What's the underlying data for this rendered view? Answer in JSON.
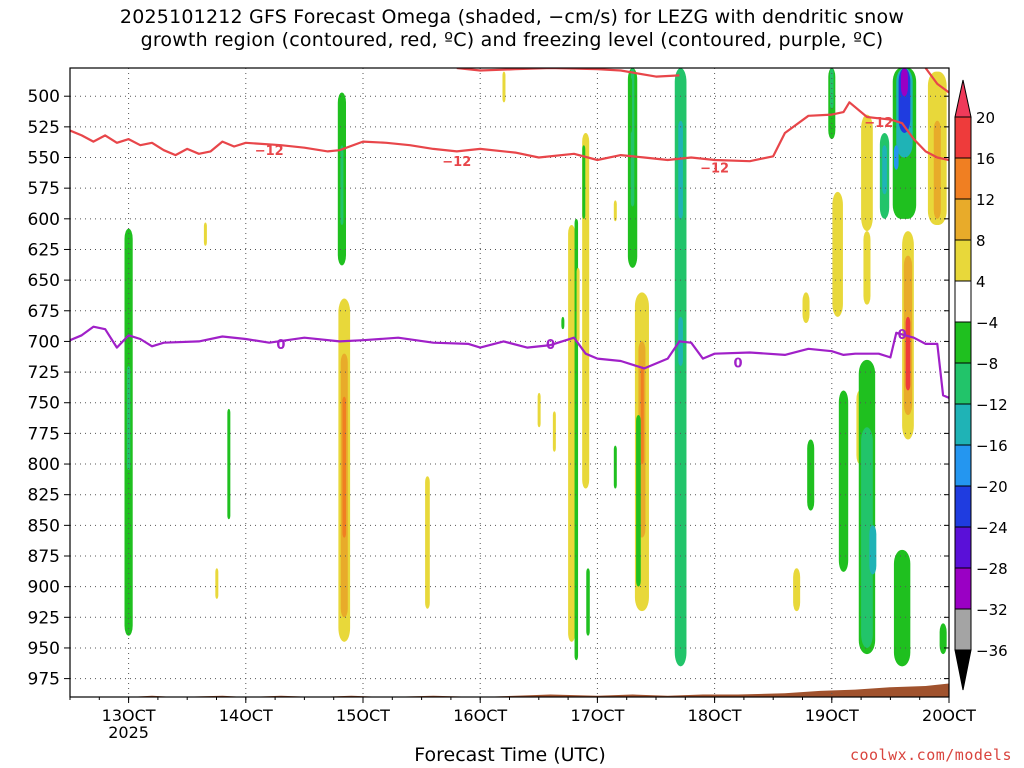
{
  "title_line1": "2025101212 GFS Forecast Omega (shaded, −cm/s) for LEZG with dendritic snow",
  "title_line2": "growth region (contoured, red, ºC) and freezing level (contoured, purple, ºC)",
  "credit": "coolwx.com/models",
  "chart_data": {
    "type": "heatmap",
    "title": "2025101212 GFS Forecast Omega (shaded, −cm/s) for LEZG with dendritic snow growth region (contoured, red, ºC) and freezing level (contoured, purple, ºC)",
    "xlabel": "Forecast Time (UTC)",
    "ylabel": "",
    "x_ticks": [
      {
        "label": "13OCT",
        "sub": "2025",
        "day": 13
      },
      {
        "label": "14OCT",
        "sub": "",
        "day": 14
      },
      {
        "label": "15OCT",
        "sub": "",
        "day": 15
      },
      {
        "label": "16OCT",
        "sub": "",
        "day": 16
      },
      {
        "label": "17OCT",
        "sub": "",
        "day": 17
      },
      {
        "label": "18OCT",
        "sub": "",
        "day": 18
      },
      {
        "label": "19OCT",
        "sub": "",
        "day": 19
      },
      {
        "label": "20OCT",
        "sub": "",
        "day": 20
      }
    ],
    "xlim": [
      12.5,
      20.0
    ],
    "y_ticks": [
      500,
      525,
      550,
      575,
      600,
      625,
      650,
      675,
      700,
      725,
      750,
      775,
      800,
      825,
      850,
      875,
      900,
      925,
      950,
      975
    ],
    "ylim": [
      990,
      477
    ],
    "grid": true,
    "colorbar": {
      "labels": [
        "20",
        "16",
        "12",
        "8",
        "4",
        "−4",
        "−8",
        "−12",
        "−16",
        "−20",
        "−24",
        "−28",
        "−32",
        "−36"
      ],
      "colors": [
        "#ef3a5a",
        "#ee3b3b",
        "#f07f22",
        "#e8ab2a",
        "#e8d83a",
        "#ffffff",
        "#1fc01f",
        "#22c46a",
        "#1fb3b6",
        "#2496f0",
        "#1f3ce0",
        "#5a10d8",
        "#9a00c4",
        "#a4a4a4",
        "#000000"
      ]
    },
    "contours": [
      {
        "label": "−12",
        "color": "#e8464a",
        "points": [
          [
            12.5,
            528
          ],
          [
            12.6,
            532
          ],
          [
            12.7,
            537
          ],
          [
            12.8,
            532
          ],
          [
            12.9,
            538
          ],
          [
            13.0,
            535
          ],
          [
            13.1,
            540
          ],
          [
            13.2,
            538
          ],
          [
            13.3,
            544
          ],
          [
            13.4,
            548
          ],
          [
            13.5,
            543
          ],
          [
            13.6,
            547
          ],
          [
            13.7,
            545
          ],
          [
            13.8,
            537
          ],
          [
            13.9,
            541
          ],
          [
            14.0,
            538
          ],
          [
            14.3,
            540
          ],
          [
            14.5,
            542
          ],
          [
            14.7,
            545
          ],
          [
            14.8,
            544
          ],
          [
            15.0,
            537
          ],
          [
            15.2,
            538
          ],
          [
            15.4,
            540
          ],
          [
            15.6,
            543
          ],
          [
            15.8,
            545
          ],
          [
            16.0,
            543
          ],
          [
            16.3,
            546
          ],
          [
            16.5,
            550
          ],
          [
            16.8,
            547
          ],
          [
            17.0,
            552
          ],
          [
            17.2,
            548
          ],
          [
            17.4,
            550
          ],
          [
            17.6,
            552
          ],
          [
            17.8,
            550
          ],
          [
            18.0,
            552
          ],
          [
            18.3,
            553
          ],
          [
            18.5,
            549
          ],
          [
            18.6,
            530
          ],
          [
            18.8,
            516
          ],
          [
            19.0,
            515
          ],
          [
            19.1,
            513
          ],
          [
            19.15,
            505
          ],
          [
            19.3,
            517
          ],
          [
            19.4,
            518
          ],
          [
            19.5,
            519
          ],
          [
            19.6,
            522
          ],
          [
            19.7,
            535
          ],
          [
            19.8,
            545
          ],
          [
            19.9,
            550
          ],
          [
            20.0,
            552
          ]
        ]
      },
      {
        "label": "−12",
        "color": "#e8464a",
        "points": [
          [
            15.8,
            477
          ],
          [
            16.0,
            479
          ],
          [
            16.3,
            478
          ],
          [
            16.6,
            477
          ],
          [
            17.0,
            478
          ],
          [
            17.2,
            479
          ],
          [
            17.5,
            484
          ],
          [
            17.7,
            483
          ]
        ]
      },
      {
        "label": "−12",
        "color": "#e8464a",
        "points": [
          [
            19.8,
            477
          ],
          [
            19.9,
            490
          ],
          [
            20.0,
            497
          ]
        ]
      },
      {
        "label": "0",
        "color": "#a020c8",
        "points": [
          [
            12.5,
            699
          ],
          [
            12.6,
            695
          ],
          [
            12.7,
            688
          ],
          [
            12.8,
            690
          ],
          [
            12.9,
            705
          ],
          [
            13.0,
            695
          ],
          [
            13.1,
            698
          ],
          [
            13.2,
            704
          ],
          [
            13.3,
            701
          ],
          [
            13.6,
            700
          ],
          [
            13.8,
            696
          ],
          [
            14.0,
            698
          ],
          [
            14.2,
            701
          ],
          [
            14.5,
            697
          ],
          [
            14.8,
            700
          ],
          [
            15.0,
            699
          ],
          [
            15.3,
            697
          ],
          [
            15.6,
            701
          ],
          [
            15.9,
            702
          ],
          [
            16.0,
            705
          ],
          [
            16.2,
            700
          ],
          [
            16.4,
            705
          ],
          [
            16.6,
            703
          ],
          [
            16.8,
            697
          ],
          [
            16.9,
            710
          ],
          [
            17.0,
            714
          ],
          [
            17.2,
            716
          ],
          [
            17.4,
            722
          ],
          [
            17.6,
            714
          ],
          [
            17.7,
            700
          ],
          [
            17.8,
            701
          ],
          [
            17.9,
            714
          ],
          [
            18.0,
            710
          ],
          [
            18.3,
            709
          ],
          [
            18.6,
            711
          ],
          [
            18.8,
            706
          ],
          [
            19.0,
            708
          ],
          [
            19.1,
            711
          ],
          [
            19.2,
            710
          ],
          [
            19.4,
            710
          ],
          [
            19.5,
            713
          ],
          [
            19.55,
            693
          ],
          [
            19.7,
            697
          ],
          [
            19.8,
            702
          ],
          [
            19.9,
            702
          ],
          [
            19.95,
            744
          ],
          [
            20.0,
            746
          ]
        ]
      }
    ],
    "contour_labels": [
      {
        "text": "−12",
        "color": "#e8464a",
        "x": 14.2,
        "y": 544
      },
      {
        "text": "−12",
        "color": "#e8464a",
        "x": 15.8,
        "y": 553
      },
      {
        "text": "−12",
        "color": "#e8464a",
        "x": 18.0,
        "y": 558
      },
      {
        "text": "−12",
        "color": "#e8464a",
        "x": 19.4,
        "y": 521
      },
      {
        "text": "0",
        "color": "#a020c8",
        "x": 14.3,
        "y": 702
      },
      {
        "text": "0",
        "color": "#a020c8",
        "x": 16.6,
        "y": 702
      },
      {
        "text": "0",
        "color": "#a020c8",
        "x": 18.2,
        "y": 717
      },
      {
        "text": "0",
        "color": "#a020c8",
        "x": 19.6,
        "y": 694
      }
    ],
    "omega_regions": [
      {
        "x": 13.0,
        "w": 0.07,
        "p0": 608,
        "p1": 940,
        "value": -6
      },
      {
        "x": 13.0,
        "w": 0.03,
        "p0": 720,
        "p1": 805,
        "value": -10
      },
      {
        "x": 13.65,
        "w": 0.015,
        "p0": 603,
        "p1": 622,
        "value": 5
      },
      {
        "x": 13.75,
        "w": 0.02,
        "p0": 885,
        "p1": 910,
        "value": 5
      },
      {
        "x": 13.85,
        "w": 0.015,
        "p0": 755,
        "p1": 845,
        "value": -6
      },
      {
        "x": 14.82,
        "w": 0.07,
        "p0": 497,
        "p1": 638,
        "value": -6
      },
      {
        "x": 14.82,
        "w": 0.025,
        "p0": 540,
        "p1": 605,
        "value": -10
      },
      {
        "x": 14.84,
        "w": 0.1,
        "p0": 665,
        "p1": 945,
        "value": 6
      },
      {
        "x": 14.84,
        "w": 0.06,
        "p0": 710,
        "p1": 925,
        "value": 11
      },
      {
        "x": 14.84,
        "w": 0.03,
        "p0": 745,
        "p1": 860,
        "value": 15
      },
      {
        "x": 15.55,
        "w": 0.04,
        "p0": 810,
        "p1": 918,
        "value": 5
      },
      {
        "x": 16.2,
        "w": 0.02,
        "p0": 480,
        "p1": 505,
        "value": 5
      },
      {
        "x": 16.5,
        "w": 0.02,
        "p0": 742,
        "p1": 770,
        "value": 5
      },
      {
        "x": 16.63,
        "w": 0.02,
        "p0": 757,
        "p1": 790,
        "value": 5
      },
      {
        "x": 16.7,
        "w": 0.015,
        "p0": 680,
        "p1": 690,
        "value": -6
      },
      {
        "x": 16.78,
        "w": 0.06,
        "p0": 605,
        "p1": 945,
        "value": 5
      },
      {
        "x": 16.82,
        "w": 0.03,
        "p0": 600,
        "p1": 960,
        "value": -6
      },
      {
        "x": 16.83,
        "w": 0.015,
        "p0": 640,
        "p1": 700,
        "value": 5
      },
      {
        "x": 16.9,
        "w": 0.06,
        "p0": 530,
        "p1": 820,
        "value": 5
      },
      {
        "x": 16.88,
        "w": 0.018,
        "p0": 540,
        "p1": 600,
        "value": -6
      },
      {
        "x": 16.92,
        "w": 0.03,
        "p0": 885,
        "p1": 940,
        "value": -6
      },
      {
        "x": 17.15,
        "w": 0.02,
        "p0": 585,
        "p1": 602,
        "value": 5
      },
      {
        "x": 17.15,
        "w": 0.02,
        "p0": 785,
        "p1": 820,
        "value": -6
      },
      {
        "x": 17.3,
        "w": 0.08,
        "p0": 477,
        "p1": 640,
        "value": -6
      },
      {
        "x": 17.3,
        "w": 0.03,
        "p0": 477,
        "p1": 590,
        "value": -10
      },
      {
        "x": 17.28,
        "w": 0.02,
        "p0": 485,
        "p1": 530,
        "value": -6
      },
      {
        "x": 17.38,
        "w": 0.12,
        "p0": 660,
        "p1": 920,
        "value": 5
      },
      {
        "x": 17.38,
        "w": 0.06,
        "p0": 700,
        "p1": 860,
        "value": 10
      },
      {
        "x": 17.38,
        "w": 0.02,
        "p0": 720,
        "p1": 800,
        "value": 15
      },
      {
        "x": 17.35,
        "w": 0.04,
        "p0": 760,
        "p1": 900,
        "value": -6
      },
      {
        "x": 17.71,
        "w": 0.1,
        "p0": 477,
        "p1": 965,
        "value": -10
      },
      {
        "x": 17.71,
        "w": 0.04,
        "p0": 520,
        "p1": 600,
        "value": -14
      },
      {
        "x": 17.71,
        "w": 0.04,
        "p0": 680,
        "p1": 720,
        "value": -14
      },
      {
        "x": 18.7,
        "w": 0.06,
        "p0": 885,
        "p1": 920,
        "value": 5
      },
      {
        "x": 18.78,
        "w": 0.06,
        "p0": 660,
        "p1": 685,
        "value": 5
      },
      {
        "x": 18.82,
        "w": 0.06,
        "p0": 780,
        "p1": 838,
        "value": -6
      },
      {
        "x": 19.0,
        "w": 0.06,
        "p0": 477,
        "p1": 535,
        "value": -6
      },
      {
        "x": 19.0,
        "w": 0.03,
        "p0": 477,
        "p1": 510,
        "value": -10
      },
      {
        "x": 19.05,
        "w": 0.09,
        "p0": 578,
        "p1": 680,
        "value": 5
      },
      {
        "x": 19.1,
        "w": 0.08,
        "p0": 740,
        "p1": 888,
        "value": -6
      },
      {
        "x": 19.24,
        "w": 0.06,
        "p0": 740,
        "p1": 800,
        "value": 5
      },
      {
        "x": 19.3,
        "w": 0.1,
        "p0": 515,
        "p1": 610,
        "value": 5
      },
      {
        "x": 19.3,
        "w": 0.06,
        "p0": 610,
        "p1": 670,
        "value": 5
      },
      {
        "x": 19.3,
        "w": 0.14,
        "p0": 715,
        "p1": 955,
        "value": -6
      },
      {
        "x": 19.3,
        "w": 0.1,
        "p0": 770,
        "p1": 950,
        "value": -10
      },
      {
        "x": 19.35,
        "w": 0.06,
        "p0": 850,
        "p1": 890,
        "value": -14
      },
      {
        "x": 19.45,
        "w": 0.08,
        "p0": 530,
        "p1": 600,
        "value": -10
      },
      {
        "x": 19.45,
        "w": 0.04,
        "p0": 540,
        "p1": 580,
        "value": -14
      },
      {
        "x": 19.62,
        "w": 0.2,
        "p0": 477,
        "p1": 600,
        "value": -6
      },
      {
        "x": 19.62,
        "w": 0.14,
        "p0": 477,
        "p1": 550,
        "value": -14
      },
      {
        "x": 19.62,
        "w": 0.1,
        "p0": 477,
        "p1": 530,
        "value": -22
      },
      {
        "x": 19.62,
        "w": 0.06,
        "p0": 477,
        "p1": 500,
        "value": -30
      },
      {
        "x": 19.55,
        "w": 0.04,
        "p0": 540,
        "p1": 560,
        "value": -18
      },
      {
        "x": 19.6,
        "w": 0.14,
        "p0": 870,
        "p1": 965,
        "value": -6
      },
      {
        "x": 19.65,
        "w": 0.1,
        "p0": 610,
        "p1": 780,
        "value": 5
      },
      {
        "x": 19.65,
        "w": 0.07,
        "p0": 630,
        "p1": 760,
        "value": 10
      },
      {
        "x": 19.65,
        "w": 0.04,
        "p0": 680,
        "p1": 740,
        "value": 18
      },
      {
        "x": 19.9,
        "w": 0.16,
        "p0": 480,
        "p1": 605,
        "value": 5
      },
      {
        "x": 19.9,
        "w": 0.06,
        "p0": 520,
        "p1": 600,
        "value": 10
      },
      {
        "x": 19.95,
        "w": 0.06,
        "p0": 930,
        "p1": 955,
        "value": -6
      }
    ],
    "terrain": {
      "color": "#a0522d",
      "points": [
        [
          12.5,
          990
        ],
        [
          13.0,
          990
        ],
        [
          13.2,
          989
        ],
        [
          13.4,
          990
        ],
        [
          13.8,
          989
        ],
        [
          14.0,
          990
        ],
        [
          14.3,
          989
        ],
        [
          14.6,
          990
        ],
        [
          14.9,
          989
        ],
        [
          15.2,
          990
        ],
        [
          15.6,
          989
        ],
        [
          16.0,
          990
        ],
        [
          16.3,
          989
        ],
        [
          16.6,
          988
        ],
        [
          17.0,
          989
        ],
        [
          17.3,
          988
        ],
        [
          17.6,
          989
        ],
        [
          17.9,
          988
        ],
        [
          18.2,
          988
        ],
        [
          18.6,
          987
        ],
        [
          18.9,
          985
        ],
        [
          19.2,
          984
        ],
        [
          19.5,
          982
        ],
        [
          19.8,
          981
        ],
        [
          20.0,
          979
        ]
      ]
    }
  }
}
